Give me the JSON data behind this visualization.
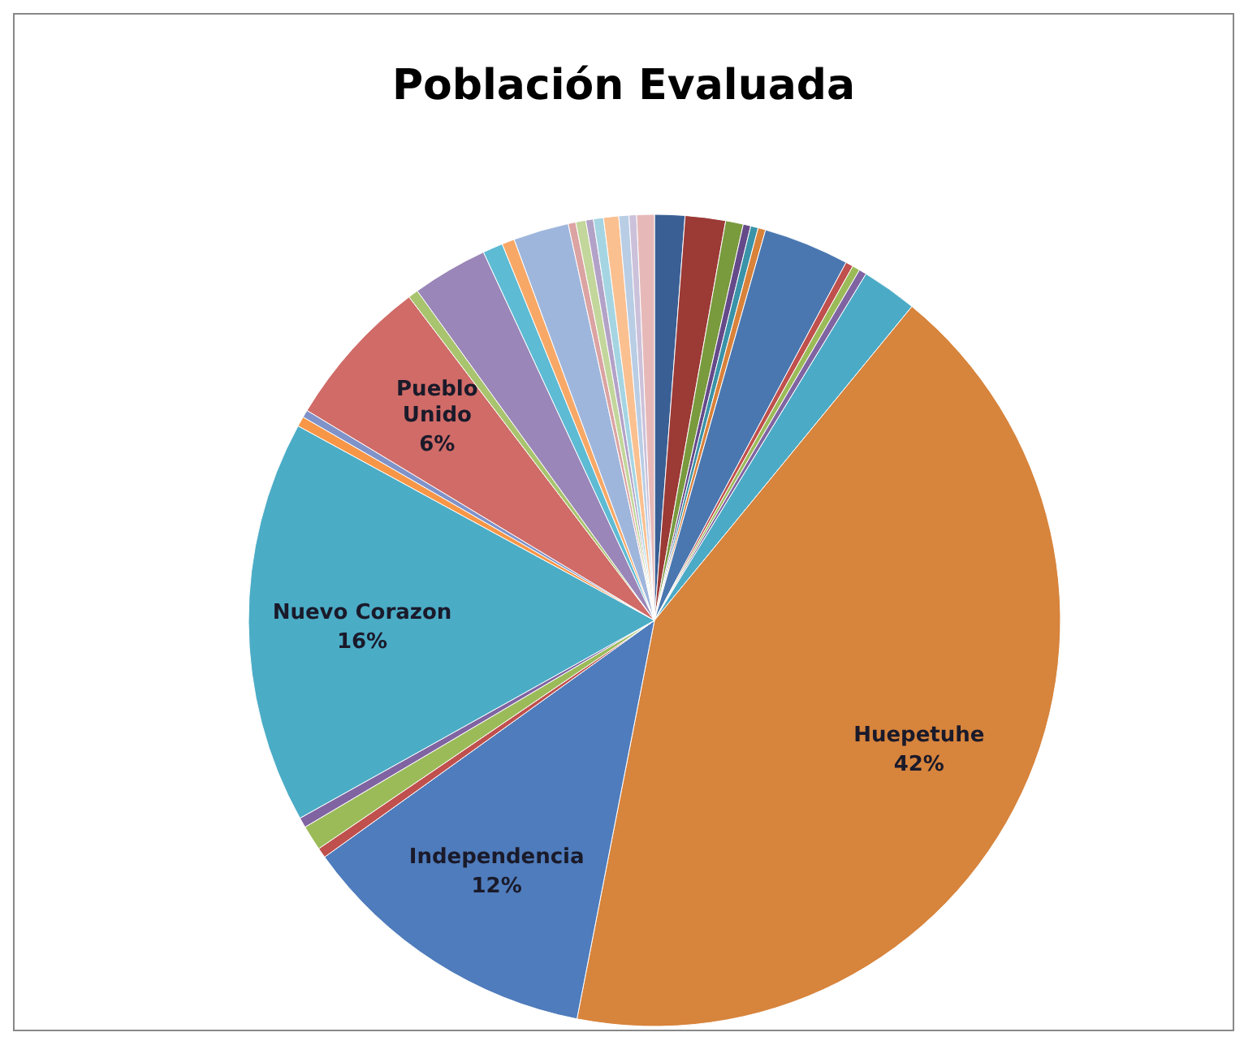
{
  "chart_data": {
    "type": "pie",
    "title": "Población Evaluada",
    "categories": [
      null,
      null,
      null,
      null,
      null,
      null,
      null,
      null,
      null,
      null,
      null,
      "Huepetuhe",
      "Independencia",
      null,
      null,
      null,
      "Nuevo Corazon",
      null,
      null,
      "Pueblo Unido",
      null,
      null,
      null,
      null,
      null,
      null,
      null,
      null,
      null,
      null,
      null,
      null,
      null
    ],
    "values": [
      1.2,
      1.6,
      0.7,
      0.3,
      0.3,
      0.3,
      3.4,
      0.3,
      0.3,
      0.3,
      2.2,
      42,
      12,
      0.4,
      1.0,
      0.4,
      16,
      0.4,
      0.3,
      6,
      0.4,
      3.0,
      0.8,
      0.5,
      2.2,
      0.3,
      0.4,
      0.3,
      0.4,
      0.6,
      0.4,
      0.3,
      0.7
    ],
    "value_labels": [
      null,
      null,
      null,
      null,
      null,
      null,
      null,
      null,
      null,
      null,
      null,
      "42%",
      "12%",
      null,
      null,
      null,
      "16%",
      null,
      null,
      "6%",
      null,
      null,
      null,
      null,
      null,
      null,
      null,
      null,
      null,
      null,
      null,
      null,
      null
    ],
    "colors": [
      "#3a5f94",
      "#9c3a36",
      "#7a9a3e",
      "#654a8a",
      "#3a93a8",
      "#d9823a",
      "#4a77b0",
      "#c0504d",
      "#9bbb59",
      "#8064a2",
      "#4babc6",
      "#d7843c",
      "#4f7cbc",
      "#c0504d",
      "#9bbb59",
      "#8064a2",
      "#4bacc6",
      "#f79646",
      "#7f93c9",
      "#d06b67",
      "#a9c46e",
      "#9a86b8",
      "#5ebbd4",
      "#f8a866",
      "#9fb6dc",
      "#dba3a2",
      "#c3d69b",
      "#b3a2c7",
      "#a5d5e2",
      "#fac090",
      "#b9cde5",
      "#ccc1da",
      "#e6b9b8"
    ]
  }
}
